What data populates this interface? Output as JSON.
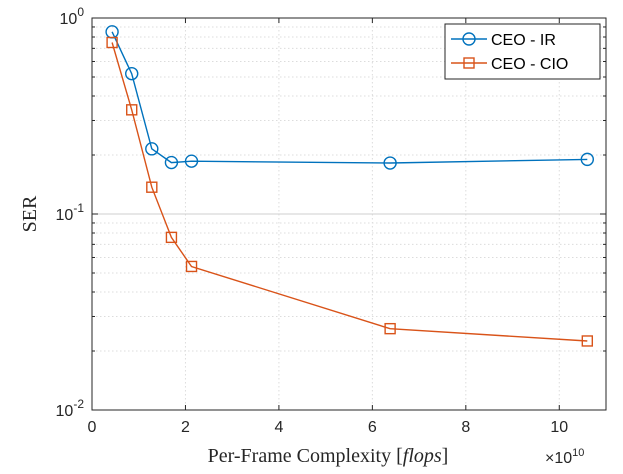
{
  "chart_data": {
    "type": "line",
    "xlabel_prefix": "Per-Frame Complexity [",
    "xlabel_italic": "flops",
    "xlabel_suffix": "]",
    "ylabel": "SER",
    "x_multiplier": "×10",
    "x_multiplier_exp": "10",
    "xlim": [
      0,
      11
    ],
    "ylim": [
      0.01,
      1
    ],
    "yscale": "log",
    "grid": true,
    "legend_position": "top-right",
    "x_ticks": [
      {
        "value": 0,
        "label": "0"
      },
      {
        "value": 2,
        "label": "2"
      },
      {
        "value": 4,
        "label": "4"
      },
      {
        "value": 6,
        "label": "6"
      },
      {
        "value": 8,
        "label": "8"
      },
      {
        "value": 10,
        "label": "10"
      }
    ],
    "y_ticks": [
      {
        "value": 0.01,
        "base": "10",
        "exp": "-2"
      },
      {
        "value": 0.1,
        "base": "10",
        "exp": "-1"
      },
      {
        "value": 1,
        "base": "10",
        "exp": "0"
      }
    ],
    "series": [
      {
        "name": "CEO - IR",
        "color": "#0072BD",
        "marker": "circle",
        "x": [
          0.43,
          0.85,
          1.28,
          1.7,
          2.13,
          6.38,
          10.6
        ],
        "y": [
          0.85,
          0.52,
          0.215,
          0.183,
          0.186,
          0.182,
          0.19
        ]
      },
      {
        "name": "CEO - CIO",
        "color": "#D95319",
        "marker": "square",
        "x": [
          0.43,
          0.85,
          1.28,
          1.7,
          2.13,
          6.38,
          10.6
        ],
        "y": [
          0.75,
          0.34,
          0.137,
          0.076,
          0.054,
          0.026,
          0.0225
        ]
      }
    ]
  }
}
